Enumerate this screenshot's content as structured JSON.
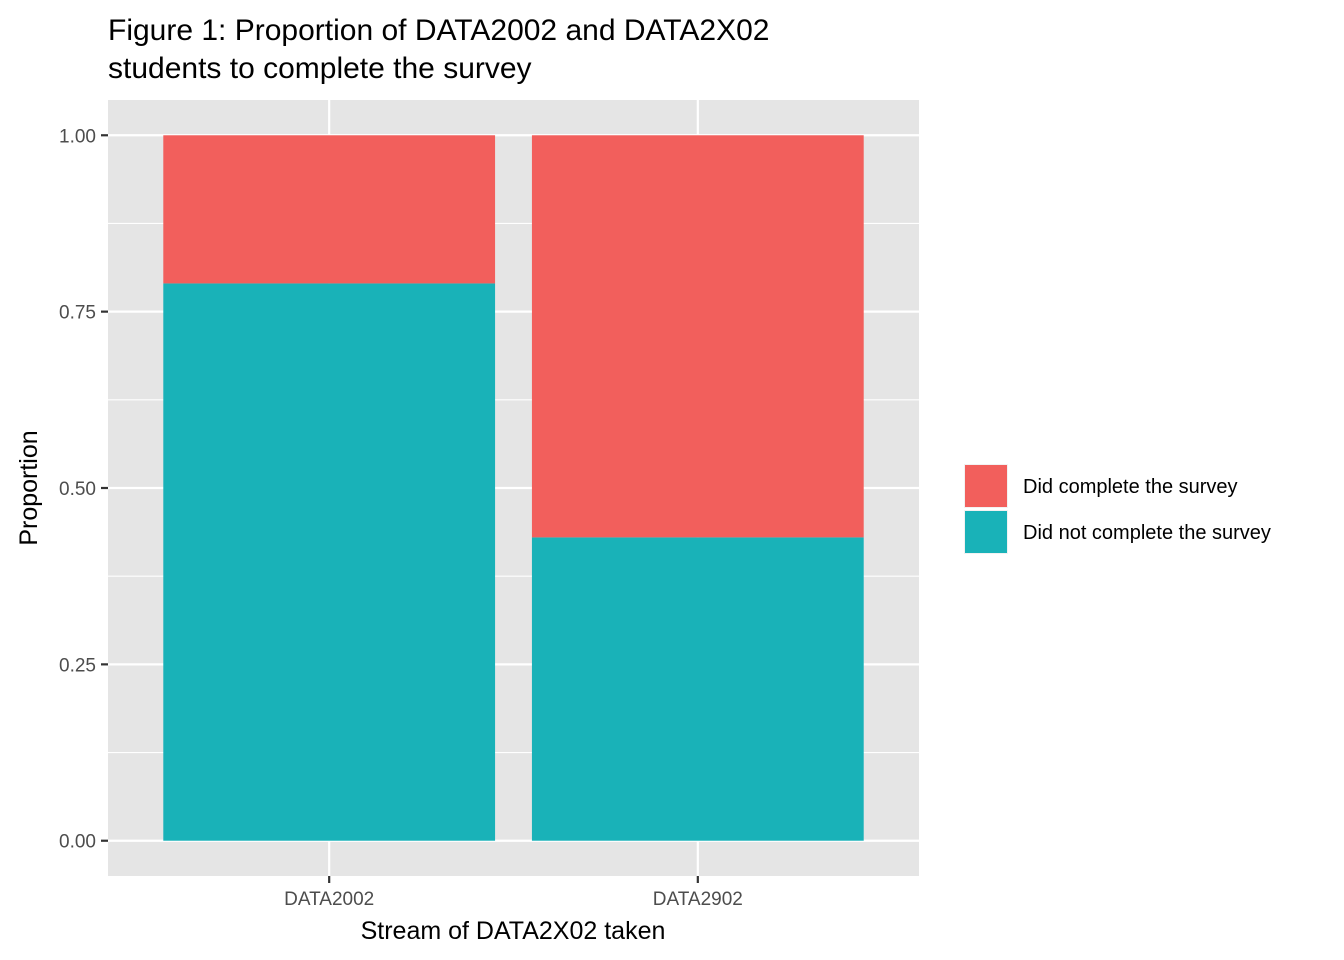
{
  "chart_data": {
    "type": "bar",
    "stacked": true,
    "title": "Figure 1: Proportion of DATA2002 and DATA2X02\nstudents to complete the survey",
    "xlabel": "Stream of DATA2X02 taken",
    "ylabel": "Proportion",
    "categories": [
      "DATA2002",
      "DATA2902"
    ],
    "ylim": [
      -0.05,
      1.05
    ],
    "yticks": [
      0.0,
      0.25,
      0.5,
      0.75,
      1.0
    ],
    "ytick_labels": [
      "0.00",
      "0.25",
      "0.50",
      "0.75",
      "1.00"
    ],
    "series": [
      {
        "name": "Did not complete the survey",
        "color": "#19B2B8",
        "values": [
          0.79,
          0.43
        ]
      },
      {
        "name": "Did complete the survey",
        "color": "#F25F5C",
        "values": [
          0.21,
          0.57
        ]
      }
    ],
    "legend": {
      "position": "right",
      "entries": [
        "Did complete the survey",
        "Did not complete the survey"
      ]
    },
    "panel_background": "#E5E5E5",
    "grid": true
  }
}
